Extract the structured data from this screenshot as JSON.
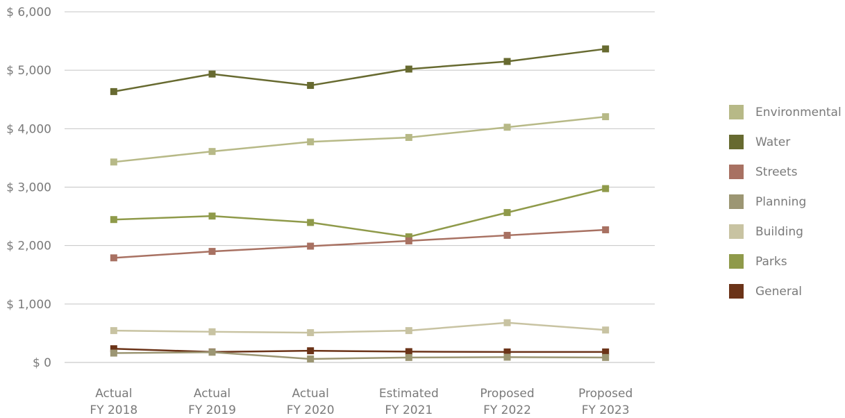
{
  "chart_data": {
    "type": "line",
    "categories": [
      [
        "Actual",
        "FY 2018"
      ],
      [
        "Actual",
        "FY 2019"
      ],
      [
        "Actual",
        "FY 2020"
      ],
      [
        "Estimated",
        "FY 2021"
      ],
      [
        "Proposed",
        "FY 2022"
      ],
      [
        "Proposed",
        "FY 2023"
      ]
    ],
    "y_ticks": [
      "$ 0",
      "$ 1,000",
      "$ 2,000",
      "$ 3,000",
      "$ 4,000",
      "$ 5,000",
      "$ 6,000"
    ],
    "ylim": [
      0,
      6000
    ],
    "grid": true,
    "legend_position": "right",
    "series": [
      {
        "name": "Environmental",
        "color": "#b7b987",
        "values": [
          3430,
          3610,
          3775,
          3850,
          4025,
          4205
        ]
      },
      {
        "name": "Water",
        "color": "#676a30",
        "values": [
          4635,
          4935,
          4740,
          5020,
          5150,
          5365
        ]
      },
      {
        "name": "Streets",
        "color": "#a87162",
        "values": [
          1790,
          1900,
          1990,
          2080,
          2175,
          2270
        ]
      },
      {
        "name": "Planning",
        "color": "#9c9673",
        "values": [
          160,
          175,
          60,
          85,
          90,
          85
        ]
      },
      {
        "name": "Building",
        "color": "#c8c3a2",
        "values": [
          545,
          525,
          510,
          545,
          680,
          555
        ]
      },
      {
        "name": "Parks",
        "color": "#8f9a4a",
        "values": [
          2445,
          2505,
          2395,
          2150,
          2565,
          2975
        ]
      },
      {
        "name": "General",
        "color": "#6b3318",
        "values": [
          235,
          180,
          200,
          185,
          180,
          180
        ]
      }
    ]
  }
}
